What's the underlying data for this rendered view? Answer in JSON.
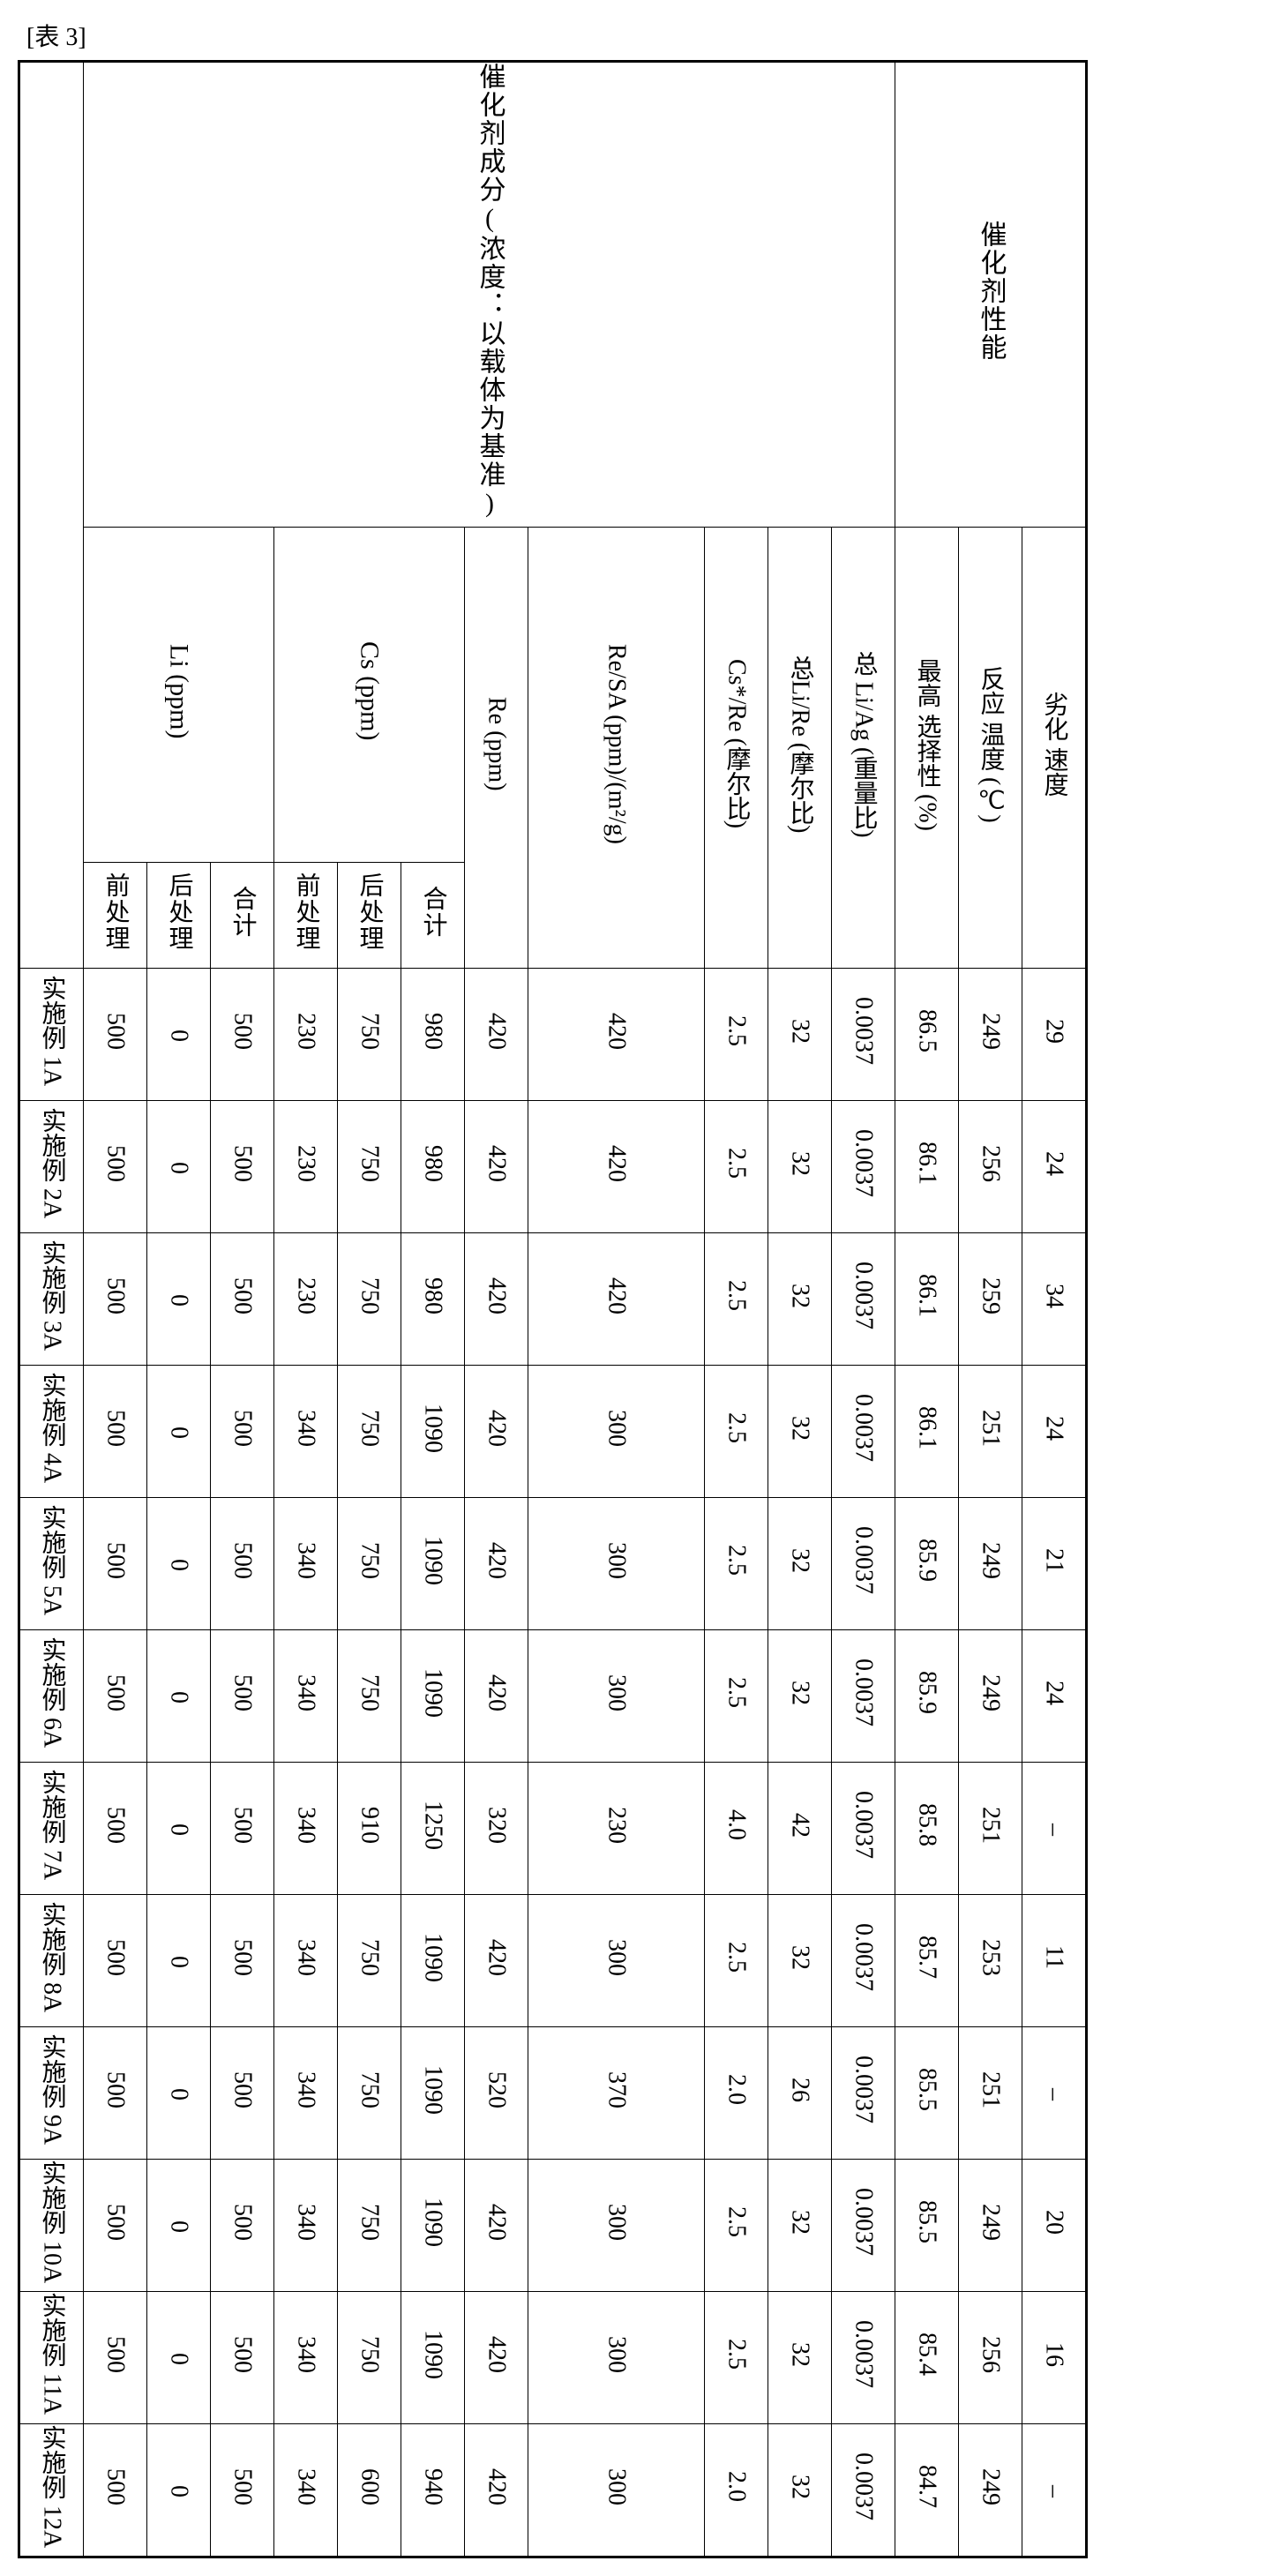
{
  "caption": "[表 3]",
  "headers": {
    "group_composition": "催化剂成分(浓度：以载体为基准)",
    "group_performance": "催化剂性能",
    "li_group": "Li (ppm)",
    "cs_group": "Cs (ppm)",
    "pre": "前处理",
    "post": "后处理",
    "total": "合计",
    "re": "Re\n(ppm)",
    "re_sa": "Re/SA\n(ppm)/(m²/g)",
    "cs_re": "Cs*/Re\n(摩尔比)",
    "li_re": "总Li/Re\n(摩尔比)",
    "li_ag": "总\nLi/Ag\n(重量比)",
    "max_sel": "最高\n选择性\n(%)",
    "react_temp": "反应\n温度\n(℃)",
    "deg_rate": "劣化\n速度"
  },
  "rows": [
    {
      "label": "实施例 1A",
      "li_pre": "500",
      "li_post": "0",
      "li_tot": "500",
      "cs_pre": "230",
      "cs_post": "750",
      "cs_tot": "980",
      "re": "420",
      "re_sa": "420",
      "cs_re": "2.5",
      "li_re": "32",
      "li_ag": "0.0037",
      "max_sel": "86.5",
      "temp": "249",
      "deg": "29"
    },
    {
      "label": "实施例 2A",
      "li_pre": "500",
      "li_post": "0",
      "li_tot": "500",
      "cs_pre": "230",
      "cs_post": "750",
      "cs_tot": "980",
      "re": "420",
      "re_sa": "420",
      "cs_re": "2.5",
      "li_re": "32",
      "li_ag": "0.0037",
      "max_sel": "86.1",
      "temp": "256",
      "deg": "24"
    },
    {
      "label": "实施例 3A",
      "li_pre": "500",
      "li_post": "0",
      "li_tot": "500",
      "cs_pre": "230",
      "cs_post": "750",
      "cs_tot": "980",
      "re": "420",
      "re_sa": "420",
      "cs_re": "2.5",
      "li_re": "32",
      "li_ag": "0.0037",
      "max_sel": "86.1",
      "temp": "259",
      "deg": "34"
    },
    {
      "label": "实施例 4A",
      "li_pre": "500",
      "li_post": "0",
      "li_tot": "500",
      "cs_pre": "340",
      "cs_post": "750",
      "cs_tot": "1090",
      "re": "420",
      "re_sa": "300",
      "cs_re": "2.5",
      "li_re": "32",
      "li_ag": "0.0037",
      "max_sel": "86.1",
      "temp": "251",
      "deg": "24"
    },
    {
      "label": "实施例 5A",
      "li_pre": "500",
      "li_post": "0",
      "li_tot": "500",
      "cs_pre": "340",
      "cs_post": "750",
      "cs_tot": "1090",
      "re": "420",
      "re_sa": "300",
      "cs_re": "2.5",
      "li_re": "32",
      "li_ag": "0.0037",
      "max_sel": "85.9",
      "temp": "249",
      "deg": "21"
    },
    {
      "label": "实施例 6A",
      "li_pre": "500",
      "li_post": "0",
      "li_tot": "500",
      "cs_pre": "340",
      "cs_post": "750",
      "cs_tot": "1090",
      "re": "420",
      "re_sa": "300",
      "cs_re": "2.5",
      "li_re": "32",
      "li_ag": "0.0037",
      "max_sel": "85.9",
      "temp": "249",
      "deg": "24"
    },
    {
      "label": "实施例 7A",
      "li_pre": "500",
      "li_post": "0",
      "li_tot": "500",
      "cs_pre": "340",
      "cs_post": "910",
      "cs_tot": "1250",
      "re": "320",
      "re_sa": "230",
      "cs_re": "4.0",
      "li_re": "42",
      "li_ag": "0.0037",
      "max_sel": "85.8",
      "temp": "251",
      "deg": "–"
    },
    {
      "label": "实施例 8A",
      "li_pre": "500",
      "li_post": "0",
      "li_tot": "500",
      "cs_pre": "340",
      "cs_post": "750",
      "cs_tot": "1090",
      "re": "420",
      "re_sa": "300",
      "cs_re": "2.5",
      "li_re": "32",
      "li_ag": "0.0037",
      "max_sel": "85.7",
      "temp": "253",
      "deg": "11"
    },
    {
      "label": "实施例 9A",
      "li_pre": "500",
      "li_post": "0",
      "li_tot": "500",
      "cs_pre": "340",
      "cs_post": "750",
      "cs_tot": "1090",
      "re": "520",
      "re_sa": "370",
      "cs_re": "2.0",
      "li_re": "26",
      "li_ag": "0.0037",
      "max_sel": "85.5",
      "temp": "251",
      "deg": "–"
    },
    {
      "label": "实施例 10A",
      "li_pre": "500",
      "li_post": "0",
      "li_tot": "500",
      "cs_pre": "340",
      "cs_post": "750",
      "cs_tot": "1090",
      "re": "420",
      "re_sa": "300",
      "cs_re": "2.5",
      "li_re": "32",
      "li_ag": "0.0037",
      "max_sel": "85.5",
      "temp": "249",
      "deg": "20"
    },
    {
      "label": "实施例 11A",
      "li_pre": "500",
      "li_post": "0",
      "li_tot": "500",
      "cs_pre": "340",
      "cs_post": "750",
      "cs_tot": "1090",
      "re": "420",
      "re_sa": "300",
      "cs_re": "2.5",
      "li_re": "32",
      "li_ag": "0.0037",
      "max_sel": "85.4",
      "temp": "256",
      "deg": "16"
    },
    {
      "label": "实施例 12A",
      "li_pre": "500",
      "li_post": "0",
      "li_tot": "500",
      "cs_pre": "340",
      "cs_post": "600",
      "cs_tot": "940",
      "re": "420",
      "re_sa": "300",
      "cs_re": "2.0",
      "li_re": "32",
      "li_ag": "0.0037",
      "max_sel": "84.7",
      "temp": "249",
      "deg": "–"
    }
  ],
  "style": {
    "font_size_header": 28,
    "font_size_data": 28,
    "border_color": "#000000",
    "background": "#ffffff"
  }
}
